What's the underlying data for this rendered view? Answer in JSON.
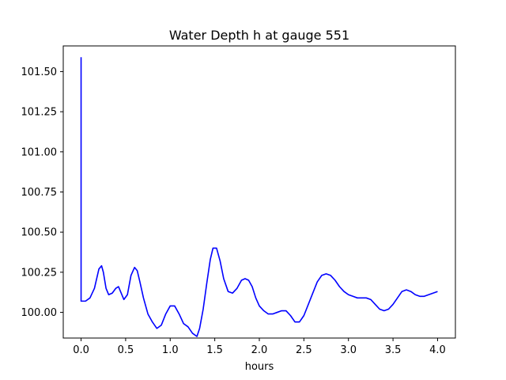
{
  "chart_data": {
    "type": "line",
    "title": "Water Depth h at gauge 551",
    "xlabel": "hours",
    "ylabel": "",
    "xlim": [
      -0.2,
      4.2
    ],
    "ylim": [
      99.84,
      101.66
    ],
    "xticks": [
      0.0,
      0.5,
      1.0,
      1.5,
      2.0,
      2.5,
      3.0,
      3.5,
      4.0
    ],
    "xtick_labels": [
      "0.0",
      "0.5",
      "1.0",
      "1.5",
      "2.0",
      "2.5",
      "3.0",
      "3.5",
      "4.0"
    ],
    "yticks": [
      100.0,
      100.25,
      100.5,
      100.75,
      101.0,
      101.25,
      101.5
    ],
    "ytick_labels": [
      "100.00",
      "100.25",
      "100.50",
      "100.75",
      "101.00",
      "101.25",
      "101.50"
    ],
    "grid": false,
    "series": [
      {
        "color": "#0000ff",
        "x": [
          0.0,
          0.0,
          0.005,
          0.05,
          0.1,
          0.15,
          0.2,
          0.23,
          0.25,
          0.28,
          0.31,
          0.35,
          0.39,
          0.42,
          0.45,
          0.48,
          0.52,
          0.56,
          0.6,
          0.63,
          0.66,
          0.7,
          0.75,
          0.8,
          0.85,
          0.9,
          0.95,
          1.0,
          1.05,
          1.1,
          1.15,
          1.2,
          1.25,
          1.3,
          1.33,
          1.37,
          1.41,
          1.45,
          1.48,
          1.52,
          1.56,
          1.6,
          1.65,
          1.7,
          1.75,
          1.8,
          1.84,
          1.88,
          1.92,
          1.96,
          2.0,
          2.05,
          2.1,
          2.15,
          2.2,
          2.25,
          2.3,
          2.35,
          2.4,
          2.45,
          2.5,
          2.55,
          2.6,
          2.65,
          2.7,
          2.75,
          2.8,
          2.85,
          2.9,
          2.95,
          3.0,
          3.05,
          3.1,
          3.15,
          3.2,
          3.25,
          3.3,
          3.35,
          3.4,
          3.45,
          3.5,
          3.55,
          3.6,
          3.65,
          3.7,
          3.75,
          3.8,
          3.85,
          3.9,
          3.95,
          4.0
        ],
        "y": [
          101.59,
          100.07,
          100.07,
          100.07,
          100.09,
          100.15,
          100.27,
          100.29,
          100.25,
          100.15,
          100.11,
          100.12,
          100.15,
          100.16,
          100.12,
          100.08,
          100.11,
          100.23,
          100.28,
          100.26,
          100.19,
          100.09,
          99.99,
          99.94,
          99.9,
          99.92,
          99.99,
          100.04,
          100.04,
          99.99,
          99.93,
          99.91,
          99.87,
          99.85,
          99.9,
          100.02,
          100.18,
          100.33,
          100.4,
          100.4,
          100.32,
          100.21,
          100.13,
          100.12,
          100.15,
          100.2,
          100.21,
          100.2,
          100.16,
          100.09,
          100.04,
          100.01,
          99.99,
          99.99,
          100.0,
          100.01,
          100.01,
          99.98,
          99.94,
          99.94,
          99.98,
          100.05,
          100.12,
          100.19,
          100.23,
          100.24,
          100.23,
          100.2,
          100.16,
          100.13,
          100.11,
          100.1,
          100.09,
          100.09,
          100.09,
          100.08,
          100.05,
          100.02,
          100.01,
          100.02,
          100.05,
          100.09,
          100.13,
          100.14,
          100.13,
          100.11,
          100.1,
          100.1,
          100.11,
          100.12,
          100.13
        ]
      }
    ]
  }
}
